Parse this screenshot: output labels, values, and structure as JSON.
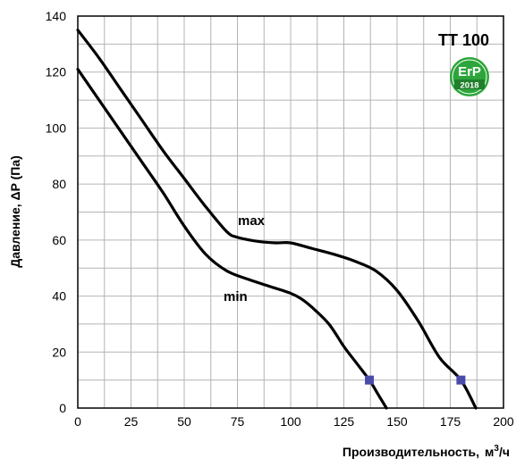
{
  "chart_data": {
    "type": "line",
    "title": "TT 100",
    "xlabel": "Производительность,",
    "xlabel_unit_base": "м",
    "xlabel_unit_sup": "3",
    "xlabel_unit_tail": "/ч",
    "ylabel": "Давление, ΔP (Па)",
    "xlim": [
      0,
      200
    ],
    "ylim": [
      0,
      140
    ],
    "xticks": [
      0,
      25,
      50,
      75,
      100,
      125,
      150,
      175,
      200
    ],
    "yticks": [
      0,
      20,
      40,
      60,
      80,
      100,
      120,
      140
    ],
    "grid": true,
    "series": [
      {
        "name": "max",
        "points": [
          [
            0,
            135
          ],
          [
            10,
            125
          ],
          [
            20,
            114
          ],
          [
            30,
            103
          ],
          [
            40,
            92
          ],
          [
            50,
            82
          ],
          [
            60,
            72
          ],
          [
            70,
            63
          ],
          [
            75,
            61
          ],
          [
            85,
            59.5
          ],
          [
            93,
            59
          ],
          [
            100,
            59
          ],
          [
            110,
            57
          ],
          [
            120,
            55
          ],
          [
            130,
            52.5
          ],
          [
            140,
            49
          ],
          [
            150,
            42
          ],
          [
            160,
            31
          ],
          [
            170,
            18
          ],
          [
            180,
            10
          ],
          [
            187,
            0
          ]
        ],
        "marker": [
          180,
          10
        ]
      },
      {
        "name": "min",
        "points": [
          [
            0,
            121
          ],
          [
            10,
            110
          ],
          [
            20,
            99
          ],
          [
            30,
            88
          ],
          [
            40,
            77
          ],
          [
            50,
            65
          ],
          [
            60,
            55
          ],
          [
            70,
            49
          ],
          [
            80,
            46
          ],
          [
            90,
            43.5
          ],
          [
            100,
            41
          ],
          [
            105,
            39
          ],
          [
            110,
            36
          ],
          [
            118,
            30
          ],
          [
            125,
            22
          ],
          [
            130,
            17
          ],
          [
            137,
            10
          ],
          [
            141,
            5
          ],
          [
            145,
            0
          ]
        ],
        "marker": [
          137,
          10
        ]
      }
    ],
    "colors": {
      "curve": "#000000",
      "marker": "#4a4aa8",
      "grid": "#b4b4b4"
    }
  },
  "badge": {
    "text": "ErP",
    "year": "2018",
    "color": "#2ca53a"
  }
}
